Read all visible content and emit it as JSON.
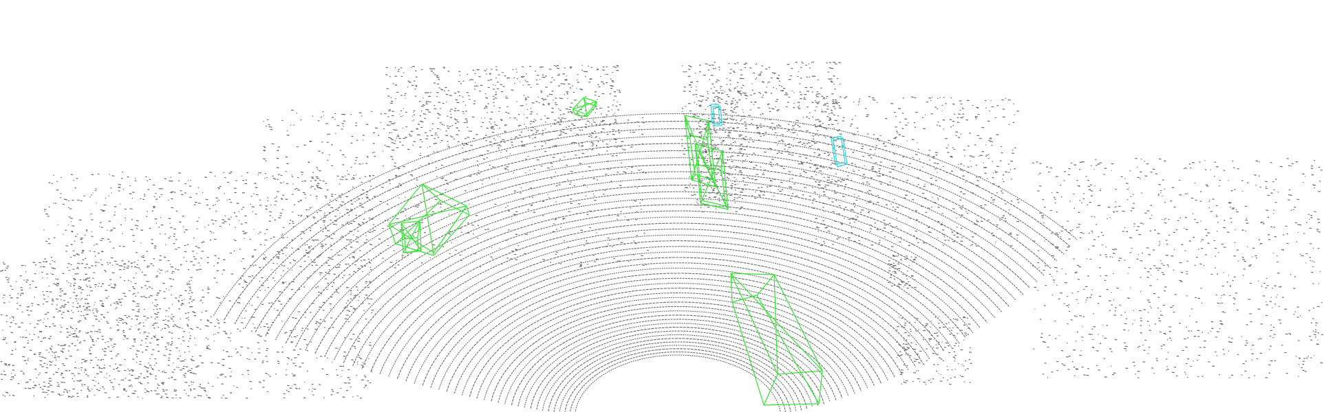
{
  "scene": {
    "background": "#ffffff",
    "point_color": "#6b6b6b",
    "car_box_color": "#2ee82e",
    "pedestrian_box_color": "#28d6e0"
  },
  "detections": [
    {
      "class": "car",
      "color_key": "car_box_color"
    },
    {
      "class": "car",
      "color_key": "car_box_color"
    },
    {
      "class": "car",
      "color_key": "car_box_color"
    },
    {
      "class": "car",
      "color_key": "car_box_color"
    },
    {
      "class": "car",
      "color_key": "car_box_color"
    },
    {
      "class": "car",
      "color_key": "car_box_color"
    },
    {
      "class": "pedestrian",
      "color_key": "pedestrian_box_color"
    },
    {
      "class": "pedestrian",
      "color_key": "pedestrian_box_color"
    }
  ]
}
